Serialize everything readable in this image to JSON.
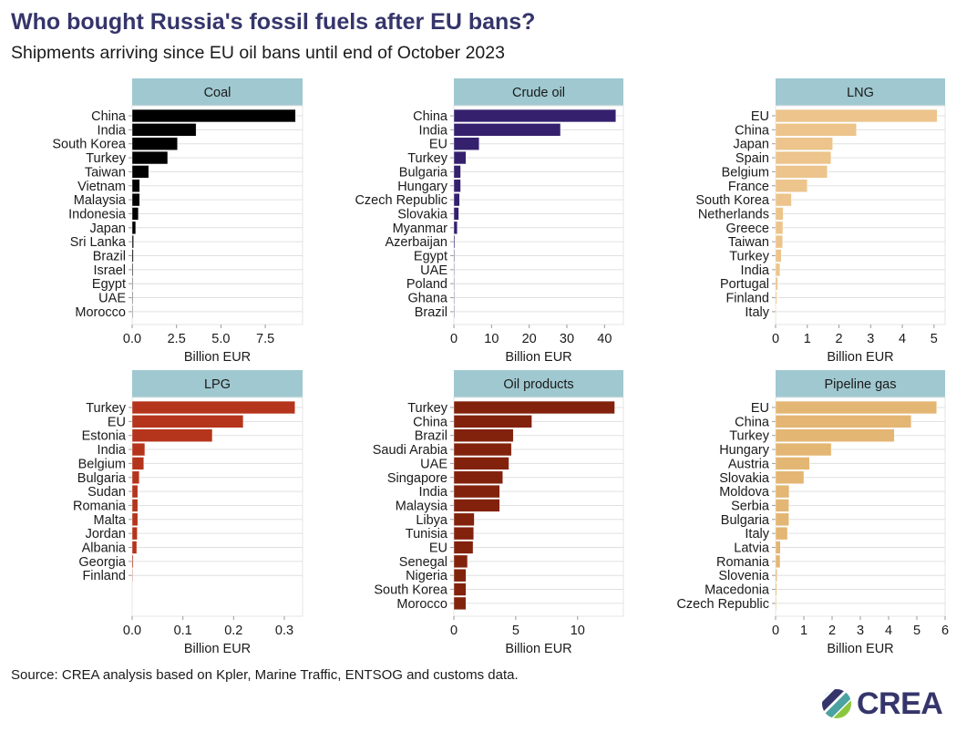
{
  "header": {
    "title": "Who bought Russia's fossil fuels after EU bans?",
    "subtitle": "Shipments arriving since EU oil bans until end of October 2023"
  },
  "footer": {
    "source": "Source: CREA analysis based on Kpler, Marine Traffic, ENTSOG and customs data.",
    "logo_text": "CREA"
  },
  "chart_data": [
    {
      "type": "bar",
      "orientation": "horizontal",
      "title": "Coal",
      "color": "#000000",
      "xlabel": "Billion EUR",
      "xlim": [
        0,
        9.6
      ],
      "ticks": [
        0,
        2.5,
        5,
        7.5
      ],
      "tick_labels": [
        "0.0",
        "2.5",
        "5.0",
        "7.5"
      ],
      "categories": [
        "China",
        "India",
        "South Korea",
        "Turkey",
        "Taiwan",
        "Vietnam",
        "Malaysia",
        "Indonesia",
        "Japan",
        "Sri Lanka",
        "Brazil",
        "Israel",
        "Egypt",
        "UAE",
        "Morocco"
      ],
      "values": [
        9.2,
        3.6,
        2.55,
        2.0,
        0.93,
        0.42,
        0.42,
        0.35,
        0.2,
        0.08,
        0.07,
        0.05,
        0.04,
        0.04,
        0.03
      ]
    },
    {
      "type": "bar",
      "orientation": "horizontal",
      "title": "Crude oil",
      "color": "#35206e",
      "xlabel": "Billion EUR",
      "xlim": [
        0,
        45
      ],
      "ticks": [
        0,
        10,
        20,
        30,
        40
      ],
      "tick_labels": [
        "0",
        "10",
        "20",
        "30",
        "40"
      ],
      "categories": [
        "China",
        "India",
        "EU",
        "Turkey",
        "Bulgaria",
        "Hungary",
        "Czech Republic",
        "Slovakia",
        "Myanmar",
        "Azerbaijan",
        "Egypt",
        "UAE",
        "Poland",
        "Ghana",
        "Brazil"
      ],
      "values": [
        43.0,
        28.3,
        6.7,
        3.2,
        1.8,
        1.8,
        1.5,
        1.3,
        0.9,
        0.25,
        0.2,
        0.05,
        0.03,
        0.02,
        0.02
      ]
    },
    {
      "type": "bar",
      "orientation": "horizontal",
      "title": "LNG",
      "color": "#ecc48c",
      "xlabel": "Billion EUR",
      "xlim": [
        0,
        5.35
      ],
      "ticks": [
        0,
        1,
        2,
        3,
        4,
        5
      ],
      "tick_labels": [
        "0",
        "1",
        "2",
        "3",
        "4",
        "5"
      ],
      "categories": [
        "EU",
        "China",
        "Japan",
        "Spain",
        "Belgium",
        "France",
        "South Korea",
        "Netherlands",
        "Greece",
        "Taiwan",
        "Turkey",
        "India",
        "Portugal",
        "Finland",
        "Italy"
      ],
      "values": [
        5.1,
        2.55,
        1.8,
        1.75,
        1.63,
        1.0,
        0.5,
        0.24,
        0.23,
        0.22,
        0.18,
        0.14,
        0.07,
        0.04,
        0.02
      ]
    },
    {
      "type": "bar",
      "orientation": "horizontal",
      "title": "LPG",
      "color": "#b5351c",
      "xlabel": "Billion EUR",
      "xlim": [
        0,
        0.336
      ],
      "ticks": [
        0,
        0.1,
        0.2,
        0.3
      ],
      "tick_labels": [
        "0.0",
        "0.1",
        "0.2",
        "0.3"
      ],
      "categories": [
        "Turkey",
        "EU",
        "Estonia",
        "India",
        "Belgium",
        "Bulgaria",
        "Sudan",
        "Romania",
        "Malta",
        "Jordan",
        "Albania",
        "Georgia",
        "Finland"
      ],
      "values": [
        0.321,
        0.219,
        0.158,
        0.025,
        0.023,
        0.014,
        0.011,
        0.011,
        0.011,
        0.01,
        0.009,
        0.002,
        0.0005
      ]
    },
    {
      "type": "bar",
      "orientation": "horizontal",
      "title": "Oil products",
      "color": "#82220d",
      "xlabel": "Billion EUR",
      "xlim": [
        0,
        13.7
      ],
      "ticks": [
        0,
        5,
        10
      ],
      "tick_labels": [
        "0",
        "5",
        "10"
      ],
      "categories": [
        "Turkey",
        "China",
        "Brazil",
        "Saudi Arabia",
        "UAE",
        "Singapore",
        "India",
        "Malaysia",
        "Libya",
        "Tunisia",
        "EU",
        "Senegal",
        "Nigeria",
        "South Korea",
        "Morocco"
      ],
      "values": [
        13.0,
        6.3,
        4.8,
        4.65,
        4.45,
        3.95,
        3.7,
        3.7,
        1.65,
        1.6,
        1.55,
        1.1,
        0.98,
        0.98,
        0.97
      ]
    },
    {
      "type": "bar",
      "orientation": "horizontal",
      "title": "Pipeline gas",
      "color": "#e4b673",
      "xlabel": "Billion EUR",
      "xlim": [
        0,
        6
      ],
      "ticks": [
        0,
        1,
        2,
        3,
        4,
        5,
        6
      ],
      "tick_labels": [
        "0",
        "1",
        "2",
        "3",
        "4",
        "5",
        "6"
      ],
      "categories": [
        "EU",
        "China",
        "Turkey",
        "Hungary",
        "Austria",
        "Slovakia",
        "Moldova",
        "Serbia",
        "Bulgaria",
        "Italy",
        "Latvia",
        "Romania",
        "Slovenia",
        "Macedonia",
        "Czech Republic"
      ],
      "values": [
        5.7,
        4.8,
        4.2,
        1.97,
        1.2,
        1.0,
        0.48,
        0.47,
        0.47,
        0.42,
        0.17,
        0.16,
        0.05,
        0.04,
        0.03
      ]
    }
  ]
}
